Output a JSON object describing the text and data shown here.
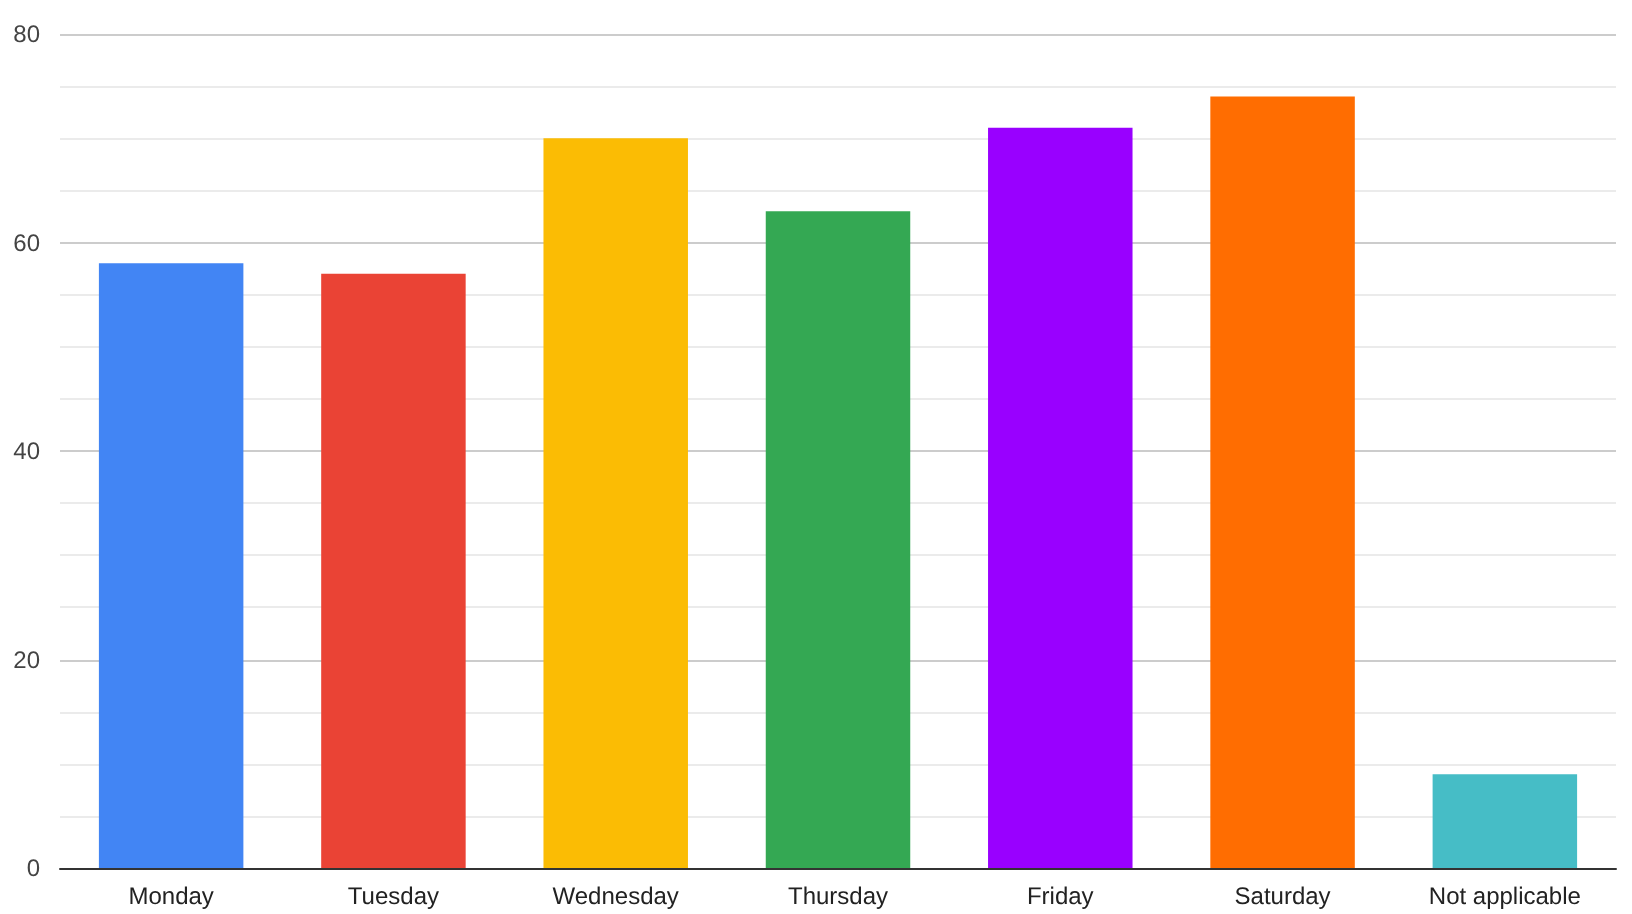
{
  "chart_data": {
    "type": "bar",
    "categories": [
      "Monday",
      "Tuesday",
      "Wednesday",
      "Thursday",
      "Friday",
      "Saturday",
      "Not applicable"
    ],
    "values": [
      58,
      57,
      70,
      63,
      71,
      74,
      9
    ],
    "colors": [
      "#4285f4",
      "#ea4335",
      "#fbbc04",
      "#34a853",
      "#9900ff",
      "#ff6d01",
      "#46bdc6"
    ],
    "ylim": [
      0,
      80
    ],
    "yticks": [
      0,
      20,
      40,
      60,
      80
    ],
    "grid": "y"
  }
}
